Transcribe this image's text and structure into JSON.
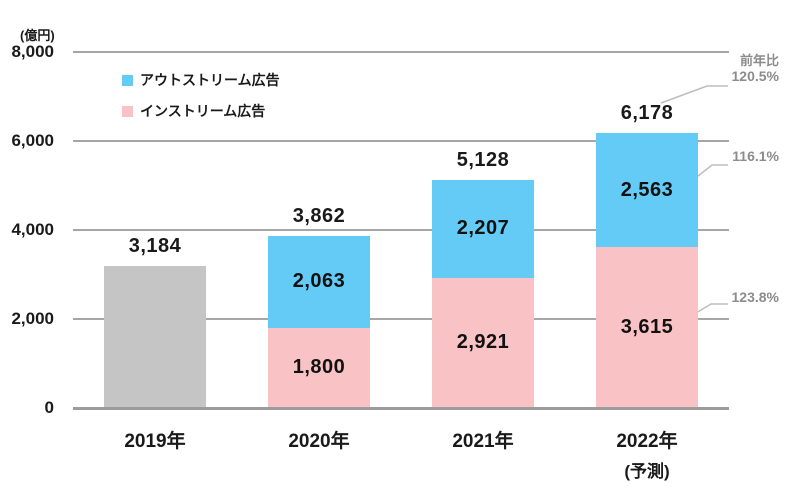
{
  "chart_data": {
    "type": "bar",
    "stacked": true,
    "ylabel": "(億円)",
    "ylim": [
      0,
      8000
    ],
    "grid": true,
    "legend_position": "top-left",
    "yticks": [
      {
        "value": 0,
        "label": "0"
      },
      {
        "value": 2000,
        "label": "2,000"
      },
      {
        "value": 4000,
        "label": "4,000"
      },
      {
        "value": 6000,
        "label": "6,000"
      },
      {
        "value": 8000,
        "label": "8,000"
      }
    ],
    "legend": [
      {
        "label": "アウトストリーム広告",
        "color": "#63CBF5"
      },
      {
        "label": "インストリーム広告",
        "color": "#F9C2C5"
      }
    ],
    "bars": [
      {
        "label": "2019年",
        "sublabel": "",
        "total": 3184,
        "total_label": "3,184",
        "segments": [
          {
            "value": 3184,
            "label": "",
            "color": "#C5C5C5"
          }
        ]
      },
      {
        "label": "2020年",
        "sublabel": "",
        "total": 3862,
        "total_label": "3,862",
        "segments": [
          {
            "value": 1800,
            "label": "1,800",
            "color": "#F9C2C5"
          },
          {
            "value": 2063,
            "label": "2,063",
            "color": "#63CBF5"
          }
        ]
      },
      {
        "label": "2021年",
        "sublabel": "",
        "total": 5128,
        "total_label": "5,128",
        "segments": [
          {
            "value": 2921,
            "label": "2,921",
            "color": "#F9C2C5"
          },
          {
            "value": 2207,
            "label": "2,207",
            "color": "#63CBF5"
          }
        ]
      },
      {
        "label": "2022年",
        "sublabel": "(予測)",
        "total": 6178,
        "total_label": "6,178",
        "segments": [
          {
            "value": 3615,
            "label": "3,615",
            "color": "#F9C2C5"
          },
          {
            "value": 2563,
            "label": "2,563",
            "color": "#63CBF5"
          }
        ]
      }
    ],
    "yoy": {
      "header": "前年比",
      "items": [
        {
          "label": "120.5%"
        },
        {
          "label": "116.1%"
        },
        {
          "label": "123.8%"
        }
      ]
    }
  }
}
